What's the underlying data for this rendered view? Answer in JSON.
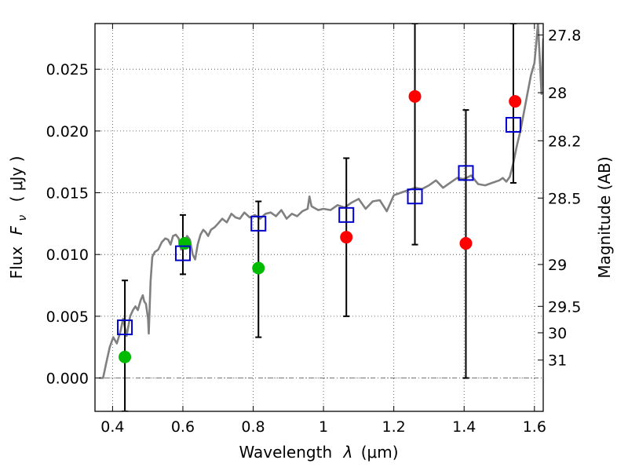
{
  "chart_data": {
    "type": "scatter",
    "xlabel_text": "Wavelength",
    "xlabel_symbol": "λ",
    "xlabel_unit": "(μm)",
    "ylabel_text": "Flux",
    "ylabel_symbol": "F",
    "ylabel_subscript": "ν",
    "ylabel_unit": "( μJy )",
    "y2label": "Magnitude (AB)",
    "xlim": [
      0.35,
      1.625
    ],
    "ylim": [
      -0.0027,
      0.0287
    ],
    "grid": true,
    "x_ticks": [
      0.4,
      0.6,
      0.8,
      1.0,
      1.2,
      1.4,
      1.6
    ],
    "x_tick_labels": [
      "0.4",
      "0.6",
      "0.8",
      "1",
      "1.2",
      "1.4",
      "1.6"
    ],
    "y_ticks": [
      0.0,
      0.005,
      0.01,
      0.015,
      0.02,
      0.025
    ],
    "y_tick_labels": [
      "0.000",
      "0.005",
      "0.010",
      "0.015",
      "0.020",
      "0.025"
    ],
    "magnitude_ticks": [
      {
        "label": "27.8",
        "flux": 0.02777
      },
      {
        "label": "28",
        "flux": 0.0231
      },
      {
        "label": "28.2",
        "flux": 0.01921
      },
      {
        "label": "28.5",
        "flux": 0.01457
      },
      {
        "label": "29",
        "flux": 0.00919
      },
      {
        "label": "29.5",
        "flux": 0.0058
      },
      {
        "label": "30",
        "flux": 0.00366
      },
      {
        "label": "31",
        "flux": 0.00145
      }
    ],
    "series": [
      {
        "kind": "spectrum",
        "color": "#808080",
        "x": [
          0.362,
          0.373,
          0.382,
          0.392,
          0.402,
          0.412,
          0.422,
          0.43,
          0.44,
          0.45,
          0.458,
          0.465,
          0.472,
          0.48,
          0.486,
          0.49,
          0.495,
          0.501,
          0.503,
          0.508,
          0.513,
          0.52,
          0.53,
          0.54,
          0.55,
          0.558,
          0.565,
          0.572,
          0.58,
          0.588,
          0.595,
          0.6,
          0.605,
          0.612,
          0.62,
          0.628,
          0.635,
          0.642,
          0.65,
          0.658,
          0.665,
          0.672,
          0.68,
          0.69,
          0.7,
          0.712,
          0.725,
          0.738,
          0.75,
          0.762,
          0.775,
          0.79,
          0.805,
          0.82,
          0.835,
          0.85,
          0.865,
          0.88,
          0.895,
          0.91,
          0.925,
          0.94,
          0.955,
          0.96,
          0.963,
          0.966,
          0.972,
          0.985,
          1.0,
          1.02,
          1.04,
          1.06,
          1.08,
          1.1,
          1.12,
          1.14,
          1.16,
          1.18,
          1.2,
          1.22,
          1.24,
          1.26,
          1.28,
          1.3,
          1.32,
          1.34,
          1.36,
          1.38,
          1.4,
          1.42,
          1.44,
          1.46,
          1.48,
          1.5,
          1.51,
          1.52,
          1.53,
          1.54,
          1.55,
          1.56,
          1.57,
          1.58,
          1.59,
          1.6,
          1.605,
          1.61,
          1.615,
          1.62,
          1.625
        ],
        "values": [
          0.0,
          0.0,
          0.0012,
          0.0025,
          0.0033,
          0.0028,
          0.0037,
          0.0048,
          0.0034,
          0.005,
          0.0055,
          0.0058,
          0.0055,
          0.0063,
          0.0067,
          0.0062,
          0.006,
          0.0048,
          0.0036,
          0.0078,
          0.0098,
          0.0102,
          0.0104,
          0.011,
          0.0113,
          0.0112,
          0.0108,
          0.0115,
          0.0116,
          0.0113,
          0.0104,
          0.0108,
          0.011,
          0.0115,
          0.0112,
          0.01,
          0.0096,
          0.0108,
          0.0116,
          0.012,
          0.0118,
          0.0115,
          0.012,
          0.0122,
          0.0125,
          0.0129,
          0.0126,
          0.0133,
          0.013,
          0.0129,
          0.0134,
          0.013,
          0.0132,
          0.0129,
          0.0133,
          0.0134,
          0.0131,
          0.0136,
          0.0129,
          0.0133,
          0.0131,
          0.0135,
          0.0137,
          0.0147,
          0.0143,
          0.0139,
          0.0138,
          0.0136,
          0.0137,
          0.0136,
          0.014,
          0.0138,
          0.0142,
          0.0145,
          0.0137,
          0.0143,
          0.0144,
          0.0135,
          0.0148,
          0.015,
          0.0152,
          0.0154,
          0.0153,
          0.0156,
          0.016,
          0.0154,
          0.0158,
          0.0162,
          0.0161,
          0.0164,
          0.0157,
          0.0156,
          0.0158,
          0.016,
          0.0162,
          0.0159,
          0.0163,
          0.0174,
          0.0188,
          0.02,
          0.0215,
          0.023,
          0.0245,
          0.0255,
          0.027,
          0.0287,
          0.026,
          0.023,
          0.0275
        ]
      },
      {
        "kind": "measurements",
        "marker": "circle",
        "color": "#ff0000",
        "x": [
          1.065,
          1.26,
          1.405,
          1.545
        ],
        "values": [
          0.0114,
          0.0228,
          0.0109,
          0.0224
        ]
      },
      {
        "kind": "measurements",
        "marker": "circle",
        "color": "#00bb00",
        "x": [
          0.435,
          0.605,
          0.815
        ],
        "values": [
          0.0017,
          0.0109,
          0.0089
        ]
      },
      {
        "kind": "model",
        "marker": "open-square",
        "color": "#0000cc",
        "x": [
          0.435,
          0.6,
          0.815,
          1.065,
          1.26,
          1.405,
          1.54
        ],
        "values": [
          0.0041,
          0.0101,
          0.0125,
          0.0132,
          0.0147,
          0.0166,
          0.0205
        ],
        "err_low": [
          -0.0027,
          0.0084,
          0.0033,
          0.005,
          0.0108,
          0.0,
          0.0158
        ],
        "err_high": [
          0.0079,
          0.0132,
          0.0143,
          0.0178,
          0.0287,
          0.0217,
          0.0287
        ],
        "err_color": "#000000"
      }
    ]
  }
}
